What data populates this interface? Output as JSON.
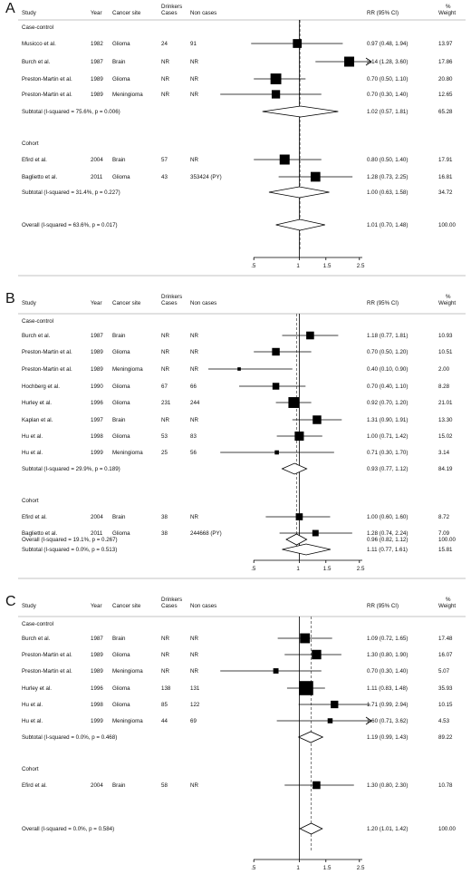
{
  "headers": {
    "study": "Study",
    "year": "Year",
    "site": "Cancer site",
    "drinkers_line1": "Drinkers",
    "drinkers_line2": "Cases",
    "noncases": "Non cases",
    "rr": "RR (95% CI)",
    "weight_line1": "%",
    "weight_line2": "Weight"
  },
  "chart_data": [
    {
      "type": "forest",
      "panel": "A",
      "xscale": "log",
      "xticks": [
        ".5",
        "1",
        "1.5",
        "2.5"
      ],
      "xtick_values": [
        0.5,
        1,
        1.5,
        2.5
      ],
      "xlim": [
        0.25,
        3.0
      ],
      "overall_rr": 1.01,
      "groups": [
        {
          "label": "Case-control",
          "rows": [
            {
              "study": "Musicco et al.",
              "year": "1982",
              "site": "Glioma",
              "cases": "24",
              "noncases": "91",
              "rr": 0.97,
              "lo": 0.48,
              "hi": 1.94,
              "rr_text": "0.97 (0.48, 1.94)",
              "weight": "13.97"
            },
            {
              "study": "Burch et al.",
              "year": "1987",
              "site": "Brain",
              "cases": "NR",
              "noncases": "NR",
              "rr": 2.14,
              "lo": 1.28,
              "hi": 3.6,
              "rr_text": "2.14 (1.28, 3.60)",
              "weight": "17.86",
              "arrow": true
            },
            {
              "study": "Preston-Martin et al.",
              "year": "1989",
              "site": "Glioma",
              "cases": "NR",
              "noncases": "NR",
              "rr": 0.7,
              "lo": 0.5,
              "hi": 1.1,
              "rr_text": "0.70 (0.50, 1.10)",
              "weight": "20.80"
            },
            {
              "study": "Preston-Martin et al.",
              "year": "1989",
              "site": "Meningioma",
              "cases": "NR",
              "noncases": "NR",
              "rr": 0.7,
              "lo": 0.3,
              "hi": 1.4,
              "rr_text": "0.70 (0.30, 1.40)",
              "weight": "12.65"
            }
          ],
          "subtotal": {
            "label": "Subtotal  (I-squared = 75.6%, p = 0.006)",
            "rr": 1.02,
            "lo": 0.57,
            "hi": 1.81,
            "rr_text": "1.02 (0.57, 1.81)",
            "weight": "65.28"
          }
        },
        {
          "label": "Cohort",
          "rows": [
            {
              "study": "Efird et al.",
              "year": "2004",
              "site": "Brain",
              "cases": "57",
              "noncases": "NR",
              "rr": 0.8,
              "lo": 0.5,
              "hi": 1.4,
              "rr_text": "0.80 (0.50, 1.40)",
              "weight": "17.91"
            },
            {
              "study": "Baglietto et al.",
              "year": "2011",
              "site": "Glioma",
              "cases": "43",
              "noncases": "353424 (PY)",
              "rr": 1.28,
              "lo": 0.73,
              "hi": 2.25,
              "rr_text": "1.28 (0.73, 2.25)",
              "weight": "16.81"
            }
          ],
          "subtotal": {
            "label": "Subtotal  (I-squared = 31.4%, p = 0.227)",
            "rr": 1.0,
            "lo": 0.63,
            "hi": 1.58,
            "rr_text": "1.00 (0.63, 1.58)",
            "weight": "34.72"
          }
        }
      ],
      "overall": {
        "label": "Overall  (I-squared = 63.6%, p = 0.017)",
        "rr": 1.01,
        "lo": 0.7,
        "hi": 1.48,
        "rr_text": "1.01 (0.70, 1.48)",
        "weight": "100.00"
      }
    },
    {
      "type": "forest",
      "panel": "B",
      "xscale": "log",
      "xticks": [
        ".5",
        "1",
        "1.5",
        "2.5"
      ],
      "xtick_values": [
        0.5,
        1,
        1.5,
        2.5
      ],
      "xlim": [
        0.25,
        3.0
      ],
      "overall_rr": 0.96,
      "groups": [
        {
          "label": "Case-control",
          "rows": [
            {
              "study": "Burch et al.",
              "year": "1987",
              "site": "Brain",
              "cases": "NR",
              "noncases": "NR",
              "rr": 1.18,
              "lo": 0.77,
              "hi": 1.81,
              "rr_text": "1.18 (0.77, 1.81)",
              "weight": "10.93"
            },
            {
              "study": "Preston-Martin et al.",
              "year": "1989",
              "site": "Glioma",
              "cases": "NR",
              "noncases": "NR",
              "rr": 0.7,
              "lo": 0.5,
              "hi": 1.2,
              "rr_text": "0.70 (0.50, 1.20)",
              "weight": "10.51"
            },
            {
              "study": "Preston-Martin et al.",
              "year": "1989",
              "site": "Meningioma",
              "cases": "NR",
              "noncases": "NR",
              "rr": 0.4,
              "lo": 0.1,
              "hi": 0.9,
              "rr_text": "0.40 (0.10, 0.90)",
              "weight": "2.00"
            },
            {
              "study": "Hochberg et al.",
              "year": "1990",
              "site": "Glioma",
              "cases": "67",
              "noncases": "66",
              "rr": 0.7,
              "lo": 0.4,
              "hi": 1.1,
              "rr_text": "0.70 (0.40, 1.10)",
              "weight": "8.28"
            },
            {
              "study": "Hurley et al.",
              "year": "1996",
              "site": "Glioma",
              "cases": "231",
              "noncases": "244",
              "rr": 0.92,
              "lo": 0.7,
              "hi": 1.2,
              "rr_text": "0.92 (0.70, 1.20)",
              "weight": "21.01"
            },
            {
              "study": "Kaplan et al.",
              "year": "1997",
              "site": "Brain",
              "cases": "NR",
              "noncases": "NR",
              "rr": 1.31,
              "lo": 0.9,
              "hi": 1.91,
              "rr_text": "1.31 (0.90, 1.91)",
              "weight": "13.30"
            },
            {
              "study": "Hu et al.",
              "year": "1998",
              "site": "Glioma",
              "cases": "53",
              "noncases": "83",
              "rr": 1.0,
              "lo": 0.71,
              "hi": 1.42,
              "rr_text": "1.00 (0.71, 1.42)",
              "weight": "15.02"
            },
            {
              "study": "Hu et al.",
              "year": "1999",
              "site": "Meningioma",
              "cases": "25",
              "noncases": "56",
              "rr": 0.71,
              "lo": 0.3,
              "hi": 1.7,
              "rr_text": "0.71 (0.30, 1.70)",
              "weight": "3.14"
            }
          ],
          "subtotal": {
            "label": "Subtotal  (I-squared = 29.9%, p = 0.189)",
            "rr": 0.93,
            "lo": 0.77,
            "hi": 1.12,
            "rr_text": "0.93 (0.77, 1.12)",
            "weight": "84.19"
          }
        },
        {
          "label": "Cohort",
          "rows": [
            {
              "study": "Efird et al.",
              "year": "2004",
              "site": "Brain",
              "cases": "38",
              "noncases": "NR",
              "rr": 1.0,
              "lo": 0.6,
              "hi": 1.6,
              "rr_text": "1.00 (0.60, 1.60)",
              "weight": "8.72"
            },
            {
              "study": "Baglietto et al.",
              "year": "2011",
              "site": "Glioma",
              "cases": "38",
              "noncases": "244668 (PY)",
              "rr": 1.28,
              "lo": 0.74,
              "hi": 2.24,
              "rr_text": "1.28 (0.74, 2.24)",
              "weight": "7.09"
            }
          ],
          "subtotal": {
            "label": "Subtotal  (I-squared = 0.0%, p = 0.513)",
            "rr": 1.11,
            "lo": 0.77,
            "hi": 1.61,
            "rr_text": "1.11 (0.77, 1.61)",
            "weight": "15.81"
          }
        }
      ],
      "overall": {
        "label": "Overall  (I-squared = 19.1%, p = 0.267)",
        "rr": 0.96,
        "lo": 0.82,
        "hi": 1.12,
        "rr_text": "0.96 (0.82, 1.12)",
        "weight": "100.00"
      }
    },
    {
      "type": "forest",
      "panel": "C",
      "xscale": "log",
      "xticks": [
        ".5",
        "1",
        "1.5",
        "2.5"
      ],
      "xtick_values": [
        0.5,
        1,
        1.5,
        2.5
      ],
      "xlim": [
        0.25,
        3.0
      ],
      "overall_rr": 1.2,
      "groups": [
        {
          "label": "Case-control",
          "rows": [
            {
              "study": "Burch et al.",
              "year": "1987",
              "site": "Brain",
              "cases": "NR",
              "noncases": "NR",
              "rr": 1.09,
              "lo": 0.72,
              "hi": 1.65,
              "rr_text": "1.09 (0.72, 1.65)",
              "weight": "17.48"
            },
            {
              "study": "Preston-Martin et al.",
              "year": "1989",
              "site": "Glioma",
              "cases": "NR",
              "noncases": "NR",
              "rr": 1.3,
              "lo": 0.8,
              "hi": 1.9,
              "rr_text": "1.30 (0.80, 1.90)",
              "weight": "16.07"
            },
            {
              "study": "Preston-Martin et al.",
              "year": "1989",
              "site": "Meningioma",
              "cases": "NR",
              "noncases": "NR",
              "rr": 0.7,
              "lo": 0.3,
              "hi": 1.4,
              "rr_text": "0.70 (0.30, 1.40)",
              "weight": "5.07"
            },
            {
              "study": "Hurley et al.",
              "year": "1996",
              "site": "Glioma",
              "cases": "138",
              "noncases": "131",
              "rr": 1.11,
              "lo": 0.83,
              "hi": 1.48,
              "rr_text": "1.11 (0.83, 1.48)",
              "weight": "35.93"
            },
            {
              "study": "Hu et al.",
              "year": "1998",
              "site": "Glioma",
              "cases": "85",
              "noncases": "122",
              "rr": 1.71,
              "lo": 0.99,
              "hi": 2.94,
              "rr_text": "1.71 (0.99, 2.94)",
              "weight": "10.15"
            },
            {
              "study": "Hu et al.",
              "year": "1999",
              "site": "Meningioma",
              "cases": "44",
              "noncases": "69",
              "rr": 1.6,
              "lo": 0.71,
              "hi": 3.62,
              "rr_text": "1.60 (0.71, 3.62)",
              "weight": "4.53"
            }
          ],
          "subtotal": {
            "label": "Subtotal  (I-squared = 0.0%, p = 0.468)",
            "rr": 1.19,
            "lo": 0.99,
            "hi": 1.43,
            "rr_text": "1.19 (0.99, 1.43)",
            "weight": "89.22"
          }
        },
        {
          "label": "Cohort",
          "rows": [
            {
              "study": "Efird et al.",
              "year": "2004",
              "site": "Brain",
              "cases": "58",
              "noncases": "NR",
              "rr": 1.3,
              "lo": 0.8,
              "hi": 2.3,
              "rr_text": "1.30 (0.80, 2.30)",
              "weight": "10.78"
            }
          ],
          "subtotal": null
        }
      ],
      "overall": {
        "label": "Overall  (I-squared = 0.0%, p = 0.584)",
        "rr": 1.2,
        "lo": 1.01,
        "hi": 1.42,
        "rr_text": "1.20 (1.01, 1.42)",
        "weight": "100.00"
      }
    }
  ]
}
